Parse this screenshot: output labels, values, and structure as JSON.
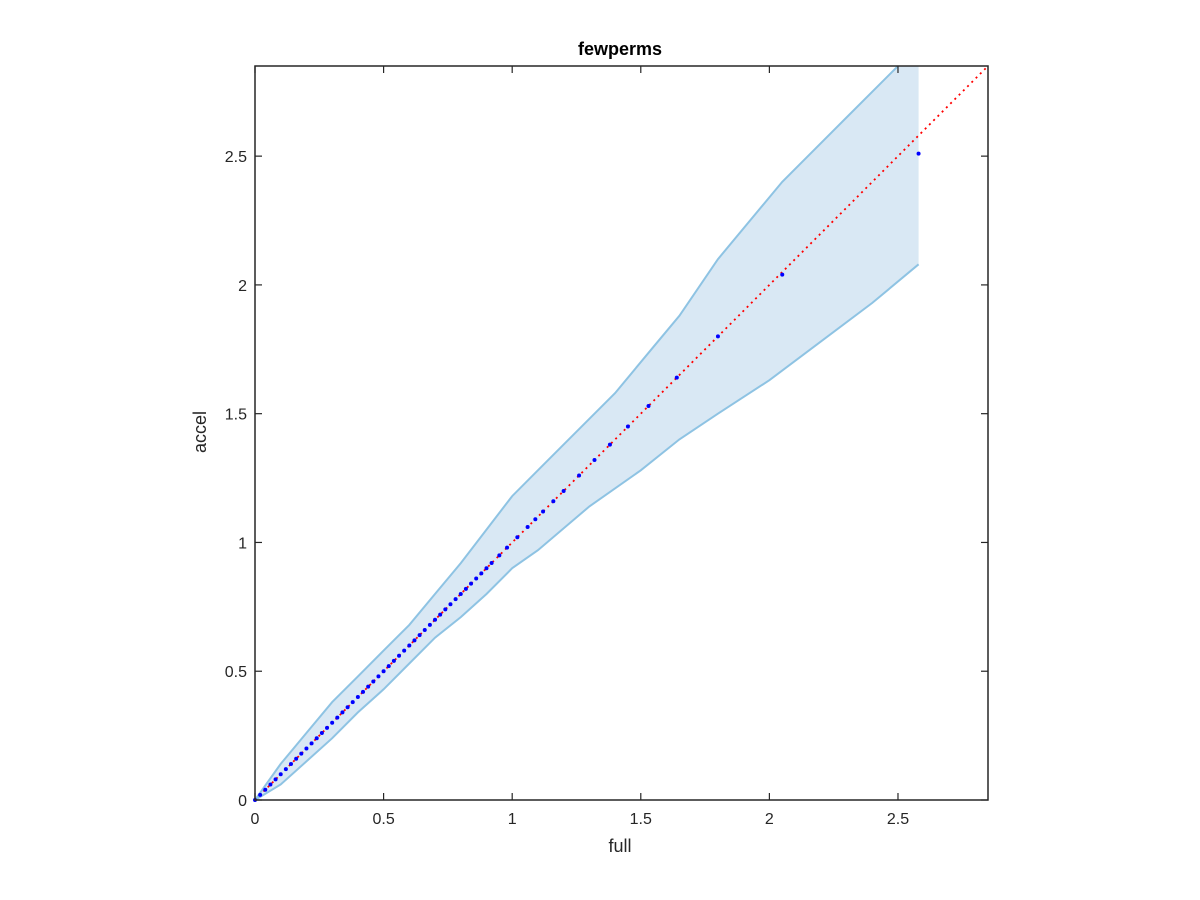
{
  "chart_data": {
    "type": "scatter",
    "title": "fewperms",
    "xlabel": "full",
    "ylabel": "accel",
    "xlim": [
      0,
      2.85
    ],
    "ylim": [
      0,
      2.85
    ],
    "xticks": [
      0,
      0.5,
      1,
      1.5,
      2,
      2.5
    ],
    "yticks": [
      0,
      0.5,
      1,
      1.5,
      2,
      2.5
    ],
    "xtick_labels": [
      "0",
      "0.5",
      "1",
      "1.5",
      "2",
      "2.5"
    ],
    "ytick_labels": [
      "0",
      "0.5",
      "1",
      "1.5",
      "2",
      "2.5"
    ],
    "grid": false,
    "legend": "none",
    "colors": {
      "band_fill": "#d9e8f4",
      "band_edge": "#8ec3e3",
      "points": "#0000ff",
      "reference_line": "#ff0000",
      "axes": "#262626"
    },
    "reference_line": {
      "style": "dotted",
      "x": [
        0,
        2.85
      ],
      "y": [
        0,
        2.85
      ]
    },
    "band": {
      "upper": [
        {
          "x": 0.0,
          "y": 0.0
        },
        {
          "x": 0.1,
          "y": 0.14
        },
        {
          "x": 0.2,
          "y": 0.26
        },
        {
          "x": 0.3,
          "y": 0.38
        },
        {
          "x": 0.4,
          "y": 0.48
        },
        {
          "x": 0.5,
          "y": 0.58
        },
        {
          "x": 0.6,
          "y": 0.68
        },
        {
          "x": 0.7,
          "y": 0.8
        },
        {
          "x": 0.8,
          "y": 0.92
        },
        {
          "x": 0.9,
          "y": 1.05
        },
        {
          "x": 1.0,
          "y": 1.18
        },
        {
          "x": 1.1,
          "y": 1.28
        },
        {
          "x": 1.2,
          "y": 1.38
        },
        {
          "x": 1.4,
          "y": 1.58
        },
        {
          "x": 1.55,
          "y": 1.76
        },
        {
          "x": 1.65,
          "y": 1.88
        },
        {
          "x": 1.8,
          "y": 2.1
        },
        {
          "x": 2.05,
          "y": 2.4
        },
        {
          "x": 2.3,
          "y": 2.65
        },
        {
          "x": 2.5,
          "y": 2.85
        },
        {
          "x": 2.58,
          "y": 2.85
        }
      ],
      "lower": [
        {
          "x": 0.0,
          "y": 0.0
        },
        {
          "x": 0.1,
          "y": 0.06
        },
        {
          "x": 0.2,
          "y": 0.15
        },
        {
          "x": 0.3,
          "y": 0.24
        },
        {
          "x": 0.4,
          "y": 0.34
        },
        {
          "x": 0.5,
          "y": 0.43
        },
        {
          "x": 0.6,
          "y": 0.53
        },
        {
          "x": 0.7,
          "y": 0.63
        },
        {
          "x": 0.8,
          "y": 0.71
        },
        {
          "x": 0.9,
          "y": 0.8
        },
        {
          "x": 1.0,
          "y": 0.9
        },
        {
          "x": 1.1,
          "y": 0.97
        },
        {
          "x": 1.3,
          "y": 1.14
        },
        {
          "x": 1.5,
          "y": 1.28
        },
        {
          "x": 1.65,
          "y": 1.4
        },
        {
          "x": 1.8,
          "y": 1.5
        },
        {
          "x": 2.0,
          "y": 1.63
        },
        {
          "x": 2.2,
          "y": 1.78
        },
        {
          "x": 2.4,
          "y": 1.93
        },
        {
          "x": 2.58,
          "y": 2.08
        }
      ]
    },
    "series": [
      {
        "x": [
          0.0,
          0.02,
          0.04,
          0.06,
          0.08,
          0.1,
          0.12,
          0.14,
          0.16,
          0.18,
          0.2,
          0.22,
          0.24,
          0.26,
          0.28,
          0.3,
          0.32,
          0.34,
          0.36,
          0.38,
          0.4,
          0.42,
          0.44,
          0.46,
          0.48,
          0.5,
          0.52,
          0.54,
          0.56,
          0.58,
          0.6,
          0.62,
          0.64,
          0.66,
          0.68,
          0.7,
          0.72,
          0.74,
          0.76,
          0.78,
          0.8,
          0.82,
          0.84,
          0.86,
          0.88,
          0.9,
          0.92,
          0.95,
          0.98,
          1.02,
          1.06,
          1.09,
          1.12,
          1.16,
          1.2,
          1.26,
          1.32,
          1.38,
          1.45,
          1.53,
          1.64,
          1.8,
          2.05,
          2.58
        ],
        "y": [
          0.0,
          0.02,
          0.04,
          0.06,
          0.08,
          0.1,
          0.12,
          0.14,
          0.16,
          0.18,
          0.2,
          0.22,
          0.24,
          0.26,
          0.28,
          0.3,
          0.32,
          0.34,
          0.36,
          0.38,
          0.4,
          0.42,
          0.44,
          0.46,
          0.48,
          0.5,
          0.52,
          0.54,
          0.56,
          0.58,
          0.6,
          0.62,
          0.64,
          0.66,
          0.68,
          0.7,
          0.72,
          0.74,
          0.76,
          0.78,
          0.8,
          0.82,
          0.84,
          0.86,
          0.88,
          0.9,
          0.92,
          0.95,
          0.98,
          1.02,
          1.06,
          1.09,
          1.12,
          1.16,
          1.2,
          1.26,
          1.32,
          1.38,
          1.45,
          1.53,
          1.64,
          1.8,
          2.04,
          2.51
        ]
      }
    ]
  }
}
